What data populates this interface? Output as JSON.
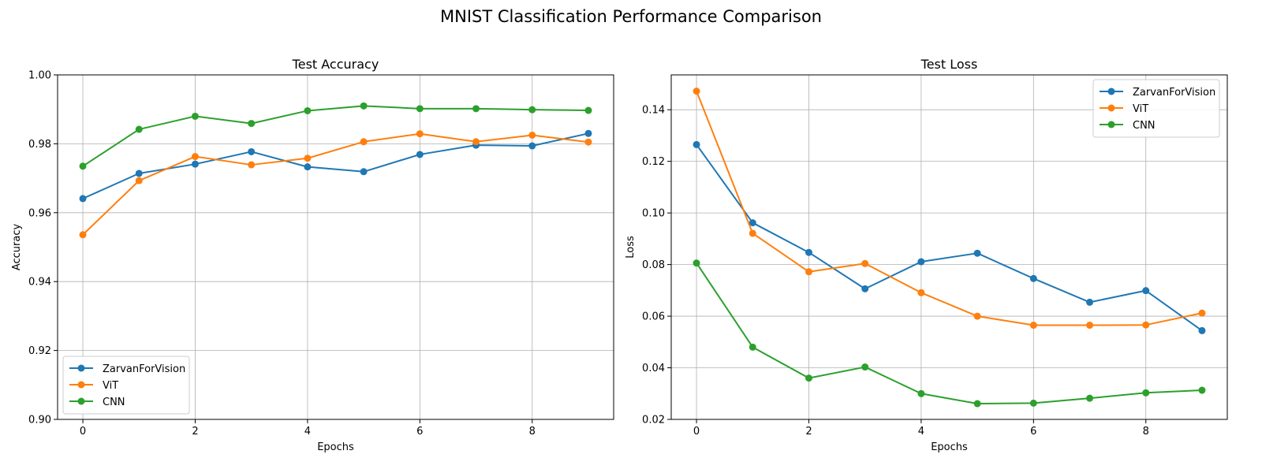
{
  "figure": {
    "title": "MNIST Classification Performance Comparison"
  },
  "colors": {
    "ZarvanForVision": "#1f77b4",
    "ViT": "#ff7f0e",
    "CNN": "#2ca02c",
    "grid": "#b0b0b0"
  },
  "chart_data": [
    {
      "type": "line",
      "title": "Test Accuracy",
      "xlabel": "Epochs",
      "ylabel": "Accuracy",
      "x": [
        0,
        1,
        2,
        3,
        4,
        5,
        6,
        7,
        8,
        9
      ],
      "xlim": [
        -0.45,
        9.45
      ],
      "ylim": [
        0.9,
        1.0
      ],
      "xticks": [
        0,
        2,
        4,
        6,
        8
      ],
      "yticks": [
        0.9,
        0.92,
        0.94,
        0.96,
        0.98,
        1.0
      ],
      "ytick_decimals": 2,
      "grid": true,
      "legend": "lower-left",
      "series": [
        {
          "name": "ZarvanForVision",
          "values": [
            0.9641,
            0.9714,
            0.9741,
            0.9777,
            0.9733,
            0.9719,
            0.9769,
            0.9796,
            0.9794,
            0.983
          ]
        },
        {
          "name": "ViT",
          "values": [
            0.9536,
            0.9693,
            0.9763,
            0.9739,
            0.9758,
            0.9806,
            0.9829,
            0.9806,
            0.9825,
            0.9805
          ]
        },
        {
          "name": "CNN",
          "values": [
            0.9735,
            0.9842,
            0.988,
            0.9859,
            0.9896,
            0.991,
            0.9902,
            0.9902,
            0.9899,
            0.9897
          ]
        }
      ]
    },
    {
      "type": "line",
      "title": "Test Loss",
      "xlabel": "Epochs",
      "ylabel": "Loss",
      "x": [
        0,
        1,
        2,
        3,
        4,
        5,
        6,
        7,
        8,
        9
      ],
      "xlim": [
        -0.45,
        9.45
      ],
      "ylim": [
        0.02,
        0.1535
      ],
      "xticks": [
        0,
        2,
        4,
        6,
        8
      ],
      "yticks": [
        0.02,
        0.04,
        0.06,
        0.08,
        0.1,
        0.12,
        0.14
      ],
      "ytick_decimals": 2,
      "grid": true,
      "legend": "upper-right",
      "series": [
        {
          "name": "ZarvanForVision",
          "values": [
            0.1265,
            0.0962,
            0.0847,
            0.0706,
            0.0811,
            0.0844,
            0.0746,
            0.0654,
            0.0699,
            0.0544
          ]
        },
        {
          "name": "ViT",
          "values": [
            0.1472,
            0.0921,
            0.0772,
            0.0804,
            0.0691,
            0.06,
            0.0565,
            0.0565,
            0.0566,
            0.0612
          ]
        },
        {
          "name": "CNN",
          "values": [
            0.0806,
            0.048,
            0.036,
            0.0403,
            0.03,
            0.0261,
            0.0263,
            0.0282,
            0.0303,
            0.0313
          ]
        }
      ]
    }
  ]
}
